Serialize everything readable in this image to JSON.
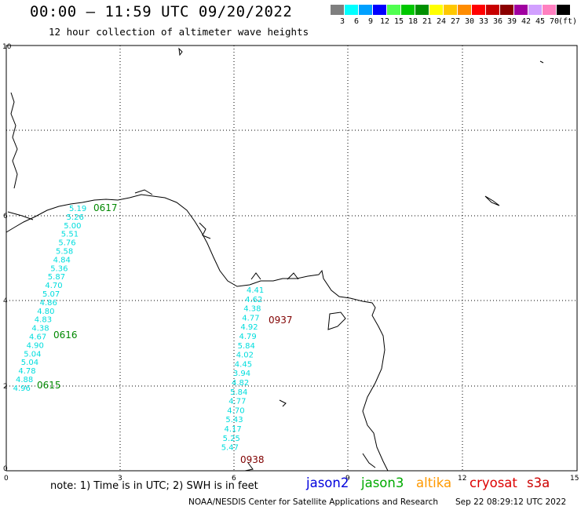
{
  "header": {
    "title": "00:00 – 11:59 UTC 09/20/2022",
    "subtitle": "12 hour collection of altimeter wave heights"
  },
  "color_scale": {
    "unit": "(ft)",
    "bins": [
      {
        "label": "3",
        "color": "#7f7f7f"
      },
      {
        "label": "6",
        "color": "#00ffff"
      },
      {
        "label": "9",
        "color": "#00a0ff"
      },
      {
        "label": "12",
        "color": "#0000ff"
      },
      {
        "label": "15",
        "color": "#50ff50"
      },
      {
        "label": "18",
        "color": "#00c800"
      },
      {
        "label": "21",
        "color": "#009000"
      },
      {
        "label": "24",
        "color": "#ffff00"
      },
      {
        "label": "27",
        "color": "#ffc800"
      },
      {
        "label": "30",
        "color": "#ff8c00"
      },
      {
        "label": "33",
        "color": "#ff0000"
      },
      {
        "label": "36",
        "color": "#c80000"
      },
      {
        "label": "39",
        "color": "#8b0000"
      },
      {
        "label": "42",
        "color": "#a000a0"
      },
      {
        "label": "45",
        "color": "#d2a0ff"
      },
      {
        "label": "70",
        "color": "#ff80c0"
      },
      {
        "label": "",
        "color": "#000000"
      }
    ]
  },
  "axes": {
    "x_ticks": [
      "0",
      "3",
      "6",
      "9",
      "12",
      "15"
    ],
    "y_ticks": [
      "0",
      "2",
      "4",
      "6",
      "10"
    ]
  },
  "tracks": [
    {
      "time": "0617",
      "time_color": "#008800",
      "value_color": "#00dddd",
      "values": [
        "5.19",
        "5.26",
        "5.00",
        "5.51",
        "5.76",
        "5.58",
        "4.84",
        "5.36",
        "5.87",
        "4.70",
        "5.07",
        "4.86",
        "4.80",
        "4.83",
        "4.38",
        "4.67",
        "4.90",
        "5.04",
        "5.04",
        "4.78",
        "4.88",
        "4.96"
      ]
    },
    {
      "time": "0616",
      "time_color": "#008800"
    },
    {
      "time": "0615",
      "time_color": "#008800"
    },
    {
      "time": "0937",
      "time_color": "#800000",
      "value_color": "#00dddd",
      "values": [
        "4.41",
        "4.62",
        "4.38",
        "4.77",
        "4.92",
        "4.79",
        "5.84",
        "4.02",
        "4.45",
        "3.94",
        "4.82",
        "5.84",
        "4.77",
        "4.70",
        "5.43",
        "4.17",
        "5.25",
        "5.47"
      ]
    },
    {
      "time": "0938",
      "time_color": "#800000"
    }
  ],
  "note": "note: 1) Time is in UTC; 2) SWH is in feet",
  "satellites": [
    {
      "name": "jason2",
      "color": "#0000dd"
    },
    {
      "name": "jason3",
      "color": "#00aa00"
    },
    {
      "name": "altika",
      "color": "#ff9900"
    },
    {
      "name": "cryosat",
      "color": "#dd0000"
    },
    {
      "name": "s3a",
      "color": "#cc0000"
    }
  ],
  "footer": {
    "credit": "NOAA/NESDIS Center for Satellite Applications and Research",
    "timestamp": "Sep 22 08:29:12 UTC 2022"
  }
}
